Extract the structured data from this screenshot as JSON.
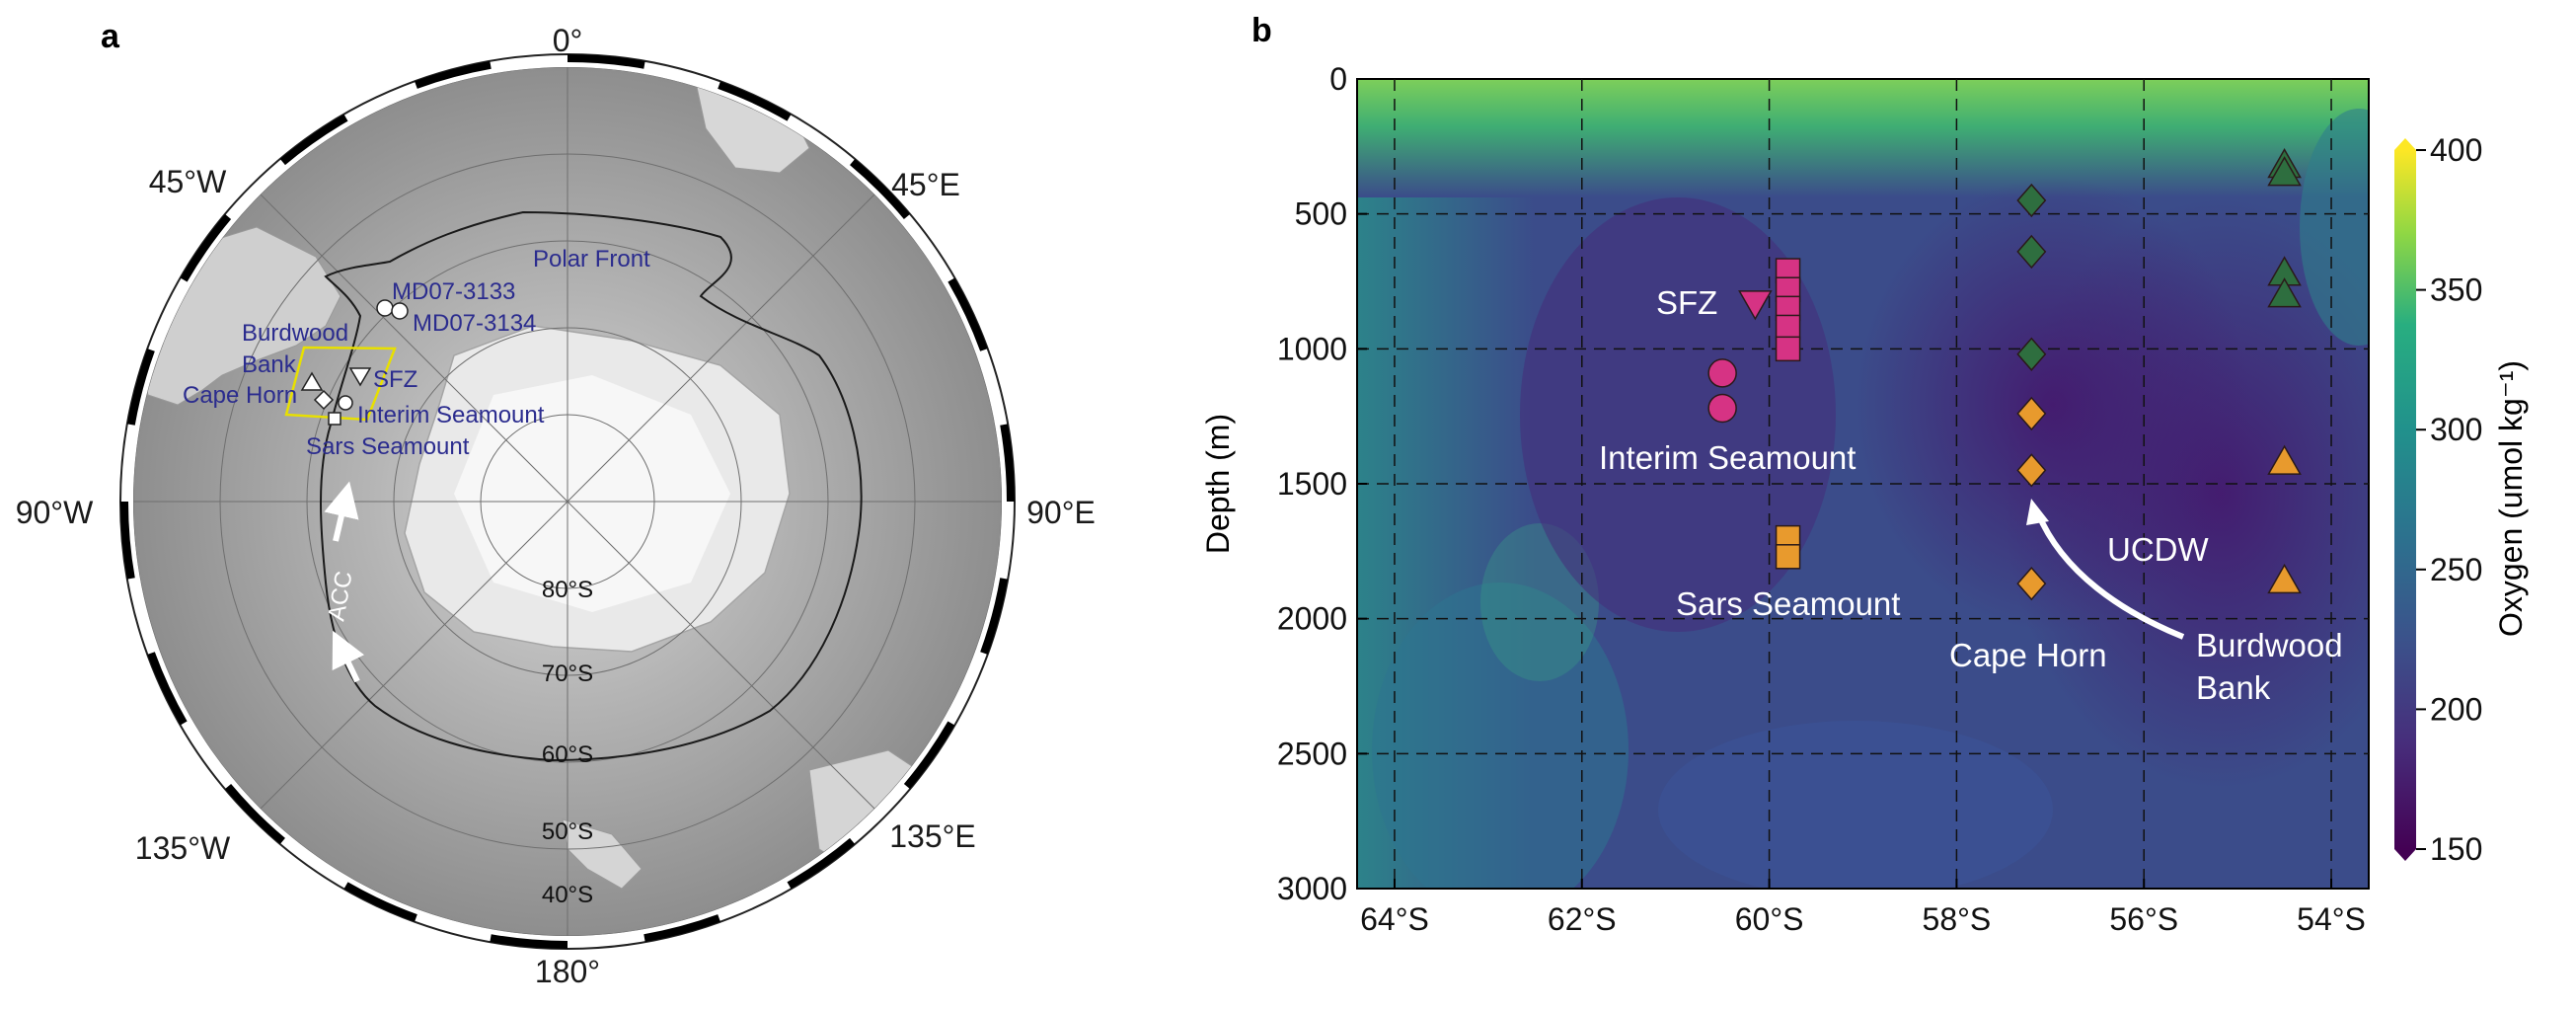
{
  "panel_a": {
    "label": "a",
    "longitude_labels": [
      {
        "text": "0°"
      },
      {
        "text": "45°E"
      },
      {
        "text": "90°E"
      },
      {
        "text": "135°E"
      },
      {
        "text": "180°"
      },
      {
        "text": "135°W"
      },
      {
        "text": "90°W"
      },
      {
        "text": "45°W"
      }
    ],
    "latitude_labels": [
      "80°S",
      "70°S",
      "60°S",
      "50°S",
      "40°S"
    ],
    "features": {
      "polar_front": "Polar Front",
      "acc": "ACC",
      "md07_3133": "MD07-3133",
      "md07_3134": "MD07-3134",
      "burdwood": "Burdwood",
      "bank": "Bank",
      "cape_horn": "Cape Horn",
      "sfz": "SFZ",
      "interim_seamount": "Interim Seamount",
      "sars_seamount": "Sars Seamount"
    },
    "colors": {
      "label_blue": "#2b2c8e",
      "box_yellow": "#e8e000"
    }
  },
  "panel_b": {
    "label": "b",
    "annotations": {
      "sfz": "SFZ",
      "interim": "Interim Seamount",
      "sars": "Sars Seamount",
      "cape_horn": "Cape Horn",
      "burdwood_1": "Burdwood",
      "burdwood_2": "Bank",
      "ucdw": "UCDW"
    },
    "colorbar_label": "Oxygen (umol kg⁻¹)"
  },
  "chart_data": {
    "type": "heatmap",
    "title": "",
    "xlabel": "",
    "ylabel": "Depth (m)",
    "xlim": [
      -64.4,
      -53.6
    ],
    "ylim": [
      3000,
      0
    ],
    "x_ticks": [
      -64,
      -62,
      -60,
      -58,
      -56,
      -54
    ],
    "x_tick_labels": [
      "64°S",
      "62°S",
      "60°S",
      "58°S",
      "56°S",
      "54°S"
    ],
    "y_ticks": [
      0,
      500,
      1000,
      1500,
      2000,
      2500,
      3000
    ],
    "y_tick_labels": [
      "0",
      "500",
      "1000",
      "1500",
      "2000",
      "2500",
      "3000"
    ],
    "grid": true,
    "colorbar": {
      "label": "Oxygen (umol kg⁻¹)",
      "range": [
        150,
        400
      ],
      "ticks": [
        150,
        200,
        250,
        300,
        350,
        400
      ],
      "tick_labels": [
        "150",
        "200",
        "250",
        "300",
        "350",
        "400"
      ],
      "colormap": "viridis"
    },
    "series": [
      {
        "name": "SFZ",
        "marker": "triangle-down",
        "color": "#d63384",
        "points": [
          {
            "lat": -60.15,
            "depth": 830
          }
        ]
      },
      {
        "name": "Interim Seamount",
        "marker": "circle",
        "color": "#d63384",
        "points": [
          {
            "lat": -60.5,
            "depth": 1090
          },
          {
            "lat": -60.5,
            "depth": 1220
          }
        ]
      },
      {
        "name": "SFZ",
        "marker": "square",
        "color": "#d63384",
        "points": [
          {
            "lat": -59.8,
            "depth": 710
          },
          {
            "lat": -59.8,
            "depth": 780
          },
          {
            "lat": -59.8,
            "depth": 850
          },
          {
            "lat": -59.8,
            "depth": 920
          },
          {
            "lat": -59.8,
            "depth": 1000
          }
        ]
      },
      {
        "name": "Sars Seamount",
        "marker": "square",
        "color": "#e89a2d",
        "points": [
          {
            "lat": -59.8,
            "depth": 1700
          },
          {
            "lat": -59.8,
            "depth": 1770
          }
        ]
      },
      {
        "name": "Cape Horn",
        "marker": "diamond",
        "color": "#2e6e3f",
        "points": [
          {
            "lat": -57.2,
            "depth": 450
          },
          {
            "lat": -57.2,
            "depth": 640
          },
          {
            "lat": -57.2,
            "depth": 1020
          }
        ]
      },
      {
        "name": "Cape Horn",
        "marker": "diamond",
        "color": "#e89a2d",
        "points": [
          {
            "lat": -57.2,
            "depth": 1240
          },
          {
            "lat": -57.2,
            "depth": 1450
          },
          {
            "lat": -57.2,
            "depth": 1870
          }
        ]
      },
      {
        "name": "Burdwood Bank",
        "marker": "triangle-up",
        "color": "#2e6e3f",
        "points": [
          {
            "lat": -54.5,
            "depth": 320
          },
          {
            "lat": -54.5,
            "depth": 350
          },
          {
            "lat": -54.5,
            "depth": 720
          },
          {
            "lat": -54.5,
            "depth": 800
          }
        ]
      },
      {
        "name": "Burdwood Bank",
        "marker": "triangle-up",
        "color": "#e89a2d",
        "points": [
          {
            "lat": -54.5,
            "depth": 1420
          },
          {
            "lat": -54.5,
            "depth": 1860
          }
        ]
      }
    ]
  }
}
